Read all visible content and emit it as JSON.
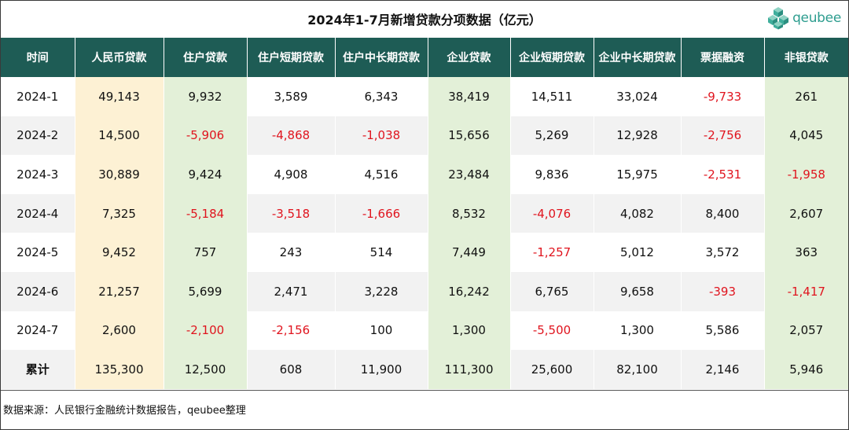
{
  "title": "2024年1-7月新增贷款分项数据（亿元）",
  "logo": {
    "text": "qeubee",
    "icon": "cube-cluster-logo-icon",
    "color": "#2e9d8f"
  },
  "colors": {
    "header_bg": "#1e5c55",
    "negative": "#e0141e",
    "highlight_yellow": "#fdf1d4",
    "highlight_green": "#e3f0d8"
  },
  "chart_data": {
    "type": "table",
    "title": "2024年1-7月新增贷款分项数据（亿元）",
    "columns": [
      "时间",
      "人民币贷款",
      "住户贷款",
      "住户短期贷款",
      "住户中长期贷款",
      "企业贷款",
      "企业短期贷款",
      "企业中长期贷款",
      "票据融资",
      "非银贷款"
    ],
    "rows": [
      [
        "2024-1",
        "49,143",
        "9,932",
        "3,589",
        "6,343",
        "38,419",
        "14,511",
        "33,024",
        "-9,733",
        "261"
      ],
      [
        "2024-2",
        "14,500",
        "-5,906",
        "-4,868",
        "-1,038",
        "15,656",
        "5,269",
        "12,928",
        "-2,756",
        "4,045"
      ],
      [
        "2024-3",
        "30,889",
        "9,424",
        "4,908",
        "4,516",
        "23,484",
        "9,836",
        "15,975",
        "-2,531",
        "-1,958"
      ],
      [
        "2024-4",
        "7,325",
        "-5,184",
        "-3,518",
        "-1,666",
        "8,532",
        "-4,076",
        "4,082",
        "8,400",
        "2,607"
      ],
      [
        "2024-5",
        "9,452",
        "757",
        "243",
        "514",
        "7,449",
        "-1,257",
        "5,012",
        "3,572",
        "363"
      ],
      [
        "2024-6",
        "21,257",
        "5,699",
        "2,471",
        "3,228",
        "16,242",
        "6,765",
        "9,658",
        "-393",
        "-1,417"
      ],
      [
        "2024-7",
        "2,600",
        "-2,100",
        "-2,156",
        "100",
        "1,300",
        "-5,500",
        "1,300",
        "5,586",
        "2,057"
      ],
      [
        "累计",
        "135,300",
        "12,500",
        "608",
        "11,900",
        "111,300",
        "25,600",
        "82,100",
        "2,146",
        "5,946"
      ]
    ]
  },
  "footnote": "数据来源：人民银行金融统计数据报告，qeubee整理"
}
